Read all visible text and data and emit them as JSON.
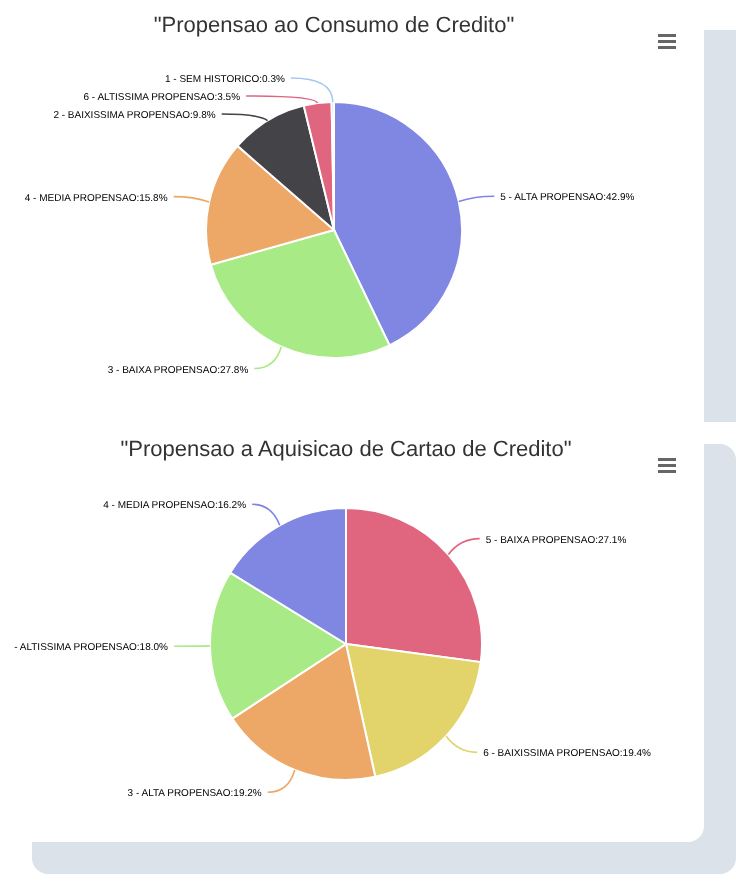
{
  "chart_data": [
    {
      "type": "pie",
      "title": "\"Propensao ao Consumo de Credito\"",
      "categories": [
        "5 - ALTA PROPENSAO",
        "3 - BAIXA PROPENSAO",
        "4 - MEDIA PROPENSAO",
        "2 - BAIXISSIMA PROPENSAO",
        "6 - ALTISSIMA PROPENSAO",
        "1 - SEM HISTORICO"
      ],
      "values": [
        42.9,
        27.8,
        15.8,
        9.8,
        3.5,
        0.3
      ],
      "colors": [
        "#8087e3",
        "#a8ea85",
        "#eda766",
        "#434348",
        "#e0657f",
        "#a3c8f0"
      ],
      "value_labels": [
        "42.9%",
        "27.8%",
        "15.8%",
        "9.8%",
        "3.5%",
        "0.3%"
      ],
      "legend": false
    },
    {
      "type": "pie",
      "title": "\"Propensao a Aquisicao de Cartao de Credito\"",
      "categories": [
        "5 - BAIXA PROPENSAO",
        "6 - BAIXISSIMA PROPENSAO",
        "3 - ALTA PROPENSAO",
        "- ALTISSIMA PROPENSAO",
        "4 - MEDIA PROPENSAO"
      ],
      "values": [
        27.1,
        19.4,
        19.2,
        18.0,
        16.2
      ],
      "colors": [
        "#e0657f",
        "#e2d36a",
        "#eda766",
        "#a8ea85",
        "#8087e3"
      ],
      "value_labels": [
        "27.1%",
        "19.4%",
        "19.2%",
        "18.0%",
        "16.2%"
      ],
      "legend": false
    }
  ]
}
